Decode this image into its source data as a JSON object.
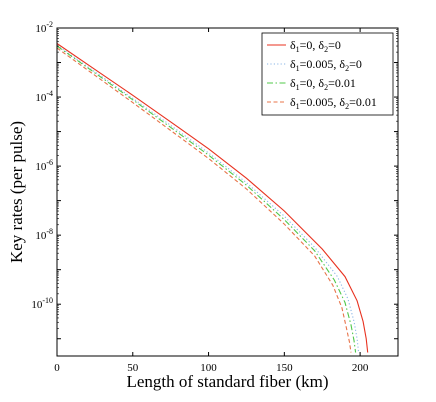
{
  "chart_data": {
    "type": "line",
    "title": "",
    "xlabel": "Length of standard fiber (km)",
    "ylabel": "Key rates (per pulse)",
    "xlim": [
      0,
      225
    ],
    "ylim_log10": [
      -11.5,
      -2
    ],
    "y_scale": "log",
    "x_ticks": [
      0,
      50,
      100,
      150,
      200
    ],
    "y_ticks_exponents": [
      -2,
      -4,
      -6,
      -8,
      -10
    ],
    "y_tick_base": "10",
    "legend_position": "top-right",
    "series": [
      {
        "name_parts": [
          "δ",
          "1",
          "=0, δ",
          "2",
          "=0"
        ],
        "color": "#e8311f",
        "dash": "solid",
        "x": [
          0,
          25,
          50,
          75,
          100,
          125,
          150,
          175,
          190,
          198,
          202,
          204,
          205
        ],
        "y_log10": [
          -2.45,
          -3.2,
          -3.95,
          -4.72,
          -5.5,
          -6.35,
          -7.3,
          -8.4,
          -9.2,
          -9.9,
          -10.5,
          -11.0,
          -11.4
        ]
      },
      {
        "name_parts": [
          "δ",
          "1",
          "=0.005, δ",
          "2",
          "=0"
        ],
        "color": "#8ab6e6",
        "dash": "dotted",
        "x": [
          0,
          25,
          50,
          75,
          100,
          125,
          150,
          170,
          185,
          192,
          196,
          198,
          199
        ],
        "y_log10": [
          -2.5,
          -3.27,
          -4.04,
          -4.82,
          -5.62,
          -6.48,
          -7.45,
          -8.35,
          -9.2,
          -9.85,
          -10.5,
          -11.0,
          -11.4
        ]
      },
      {
        "name_parts": [
          "δ",
          "1",
          "=0, δ",
          "2",
          "=0.01"
        ],
        "color": "#50c84a",
        "dash": "dashdot",
        "x": [
          0,
          25,
          50,
          75,
          100,
          125,
          150,
          170,
          183,
          190,
          194,
          196,
          197
        ],
        "y_log10": [
          -2.52,
          -3.3,
          -4.08,
          -4.88,
          -5.68,
          -6.55,
          -7.55,
          -8.45,
          -9.3,
          -9.95,
          -10.6,
          -11.05,
          -11.4
        ]
      },
      {
        "name_parts": [
          "δ",
          "1",
          "=0.005, δ",
          "2",
          "=0.01"
        ],
        "color": "#e8744a",
        "dash": "dashed",
        "x": [
          0,
          25,
          50,
          75,
          100,
          125,
          150,
          170,
          182,
          188,
          191,
          193,
          194
        ],
        "y_log10": [
          -2.58,
          -3.37,
          -4.16,
          -4.97,
          -5.78,
          -6.66,
          -7.68,
          -8.6,
          -9.45,
          -10.1,
          -10.7,
          -11.1,
          -11.4
        ]
      }
    ]
  }
}
